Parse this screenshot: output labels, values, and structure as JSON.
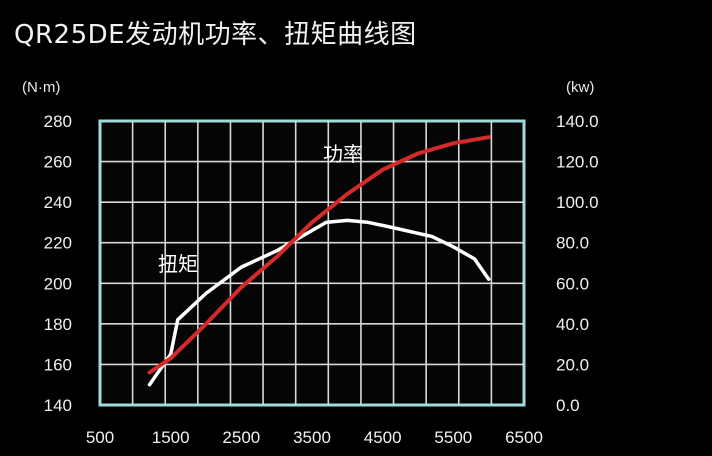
{
  "page": {
    "background": "#000000"
  },
  "chart_data": {
    "type": "line",
    "title": "QR25DE发动机功率、扭矩曲线图",
    "y_left_label": "(N·m)",
    "y_right_label": "(kw)",
    "x_ticks": [
      500,
      1500,
      2500,
      3500,
      4500,
      5500,
      6500
    ],
    "x_tick_labels": [
      "500",
      "1500",
      "2500",
      "3500",
      "4500",
      "5500",
      "6500"
    ],
    "x_range": [
      500,
      6500
    ],
    "y_left_ticks": [
      140,
      160,
      180,
      200,
      220,
      240,
      260,
      280
    ],
    "y_left_tick_labels": [
      "140",
      "160",
      "180",
      "200",
      "220",
      "240",
      "260",
      "280"
    ],
    "y_left_range": [
      140,
      280
    ],
    "y_right_ticks": [
      0,
      20,
      40,
      60,
      80,
      100,
      120,
      140
    ],
    "y_right_tick_labels": [
      "0.0",
      "20.0",
      "40.0",
      "60.0",
      "80.0",
      "100.0",
      "120.0",
      "140.0"
    ],
    "y_right_range": [
      0,
      140
    ],
    "grid": true,
    "series": [
      {
        "name": "扭矩",
        "axis": "left",
        "color": "#ffffff",
        "x": [
          1200,
          1500,
          1600,
          2000,
          2500,
          3000,
          3500,
          3700,
          4000,
          4300,
          4700,
          5200,
          5500,
          5800,
          6000
        ],
        "y": [
          150,
          165,
          182,
          195,
          208,
          216,
          226,
          230,
          231,
          230,
          227,
          223,
          218,
          212,
          202
        ]
      },
      {
        "name": "功率",
        "axis": "right",
        "color": "#d42a2a",
        "x": [
          1200,
          1500,
          2000,
          2500,
          3000,
          3500,
          4000,
          4500,
          5000,
          5500,
          6000
        ],
        "y": [
          16,
          23,
          40,
          58,
          73,
          90,
          104,
          116,
          124,
          129,
          132
        ]
      }
    ],
    "series_labels": [
      "扭矩",
      "功率"
    ]
  }
}
